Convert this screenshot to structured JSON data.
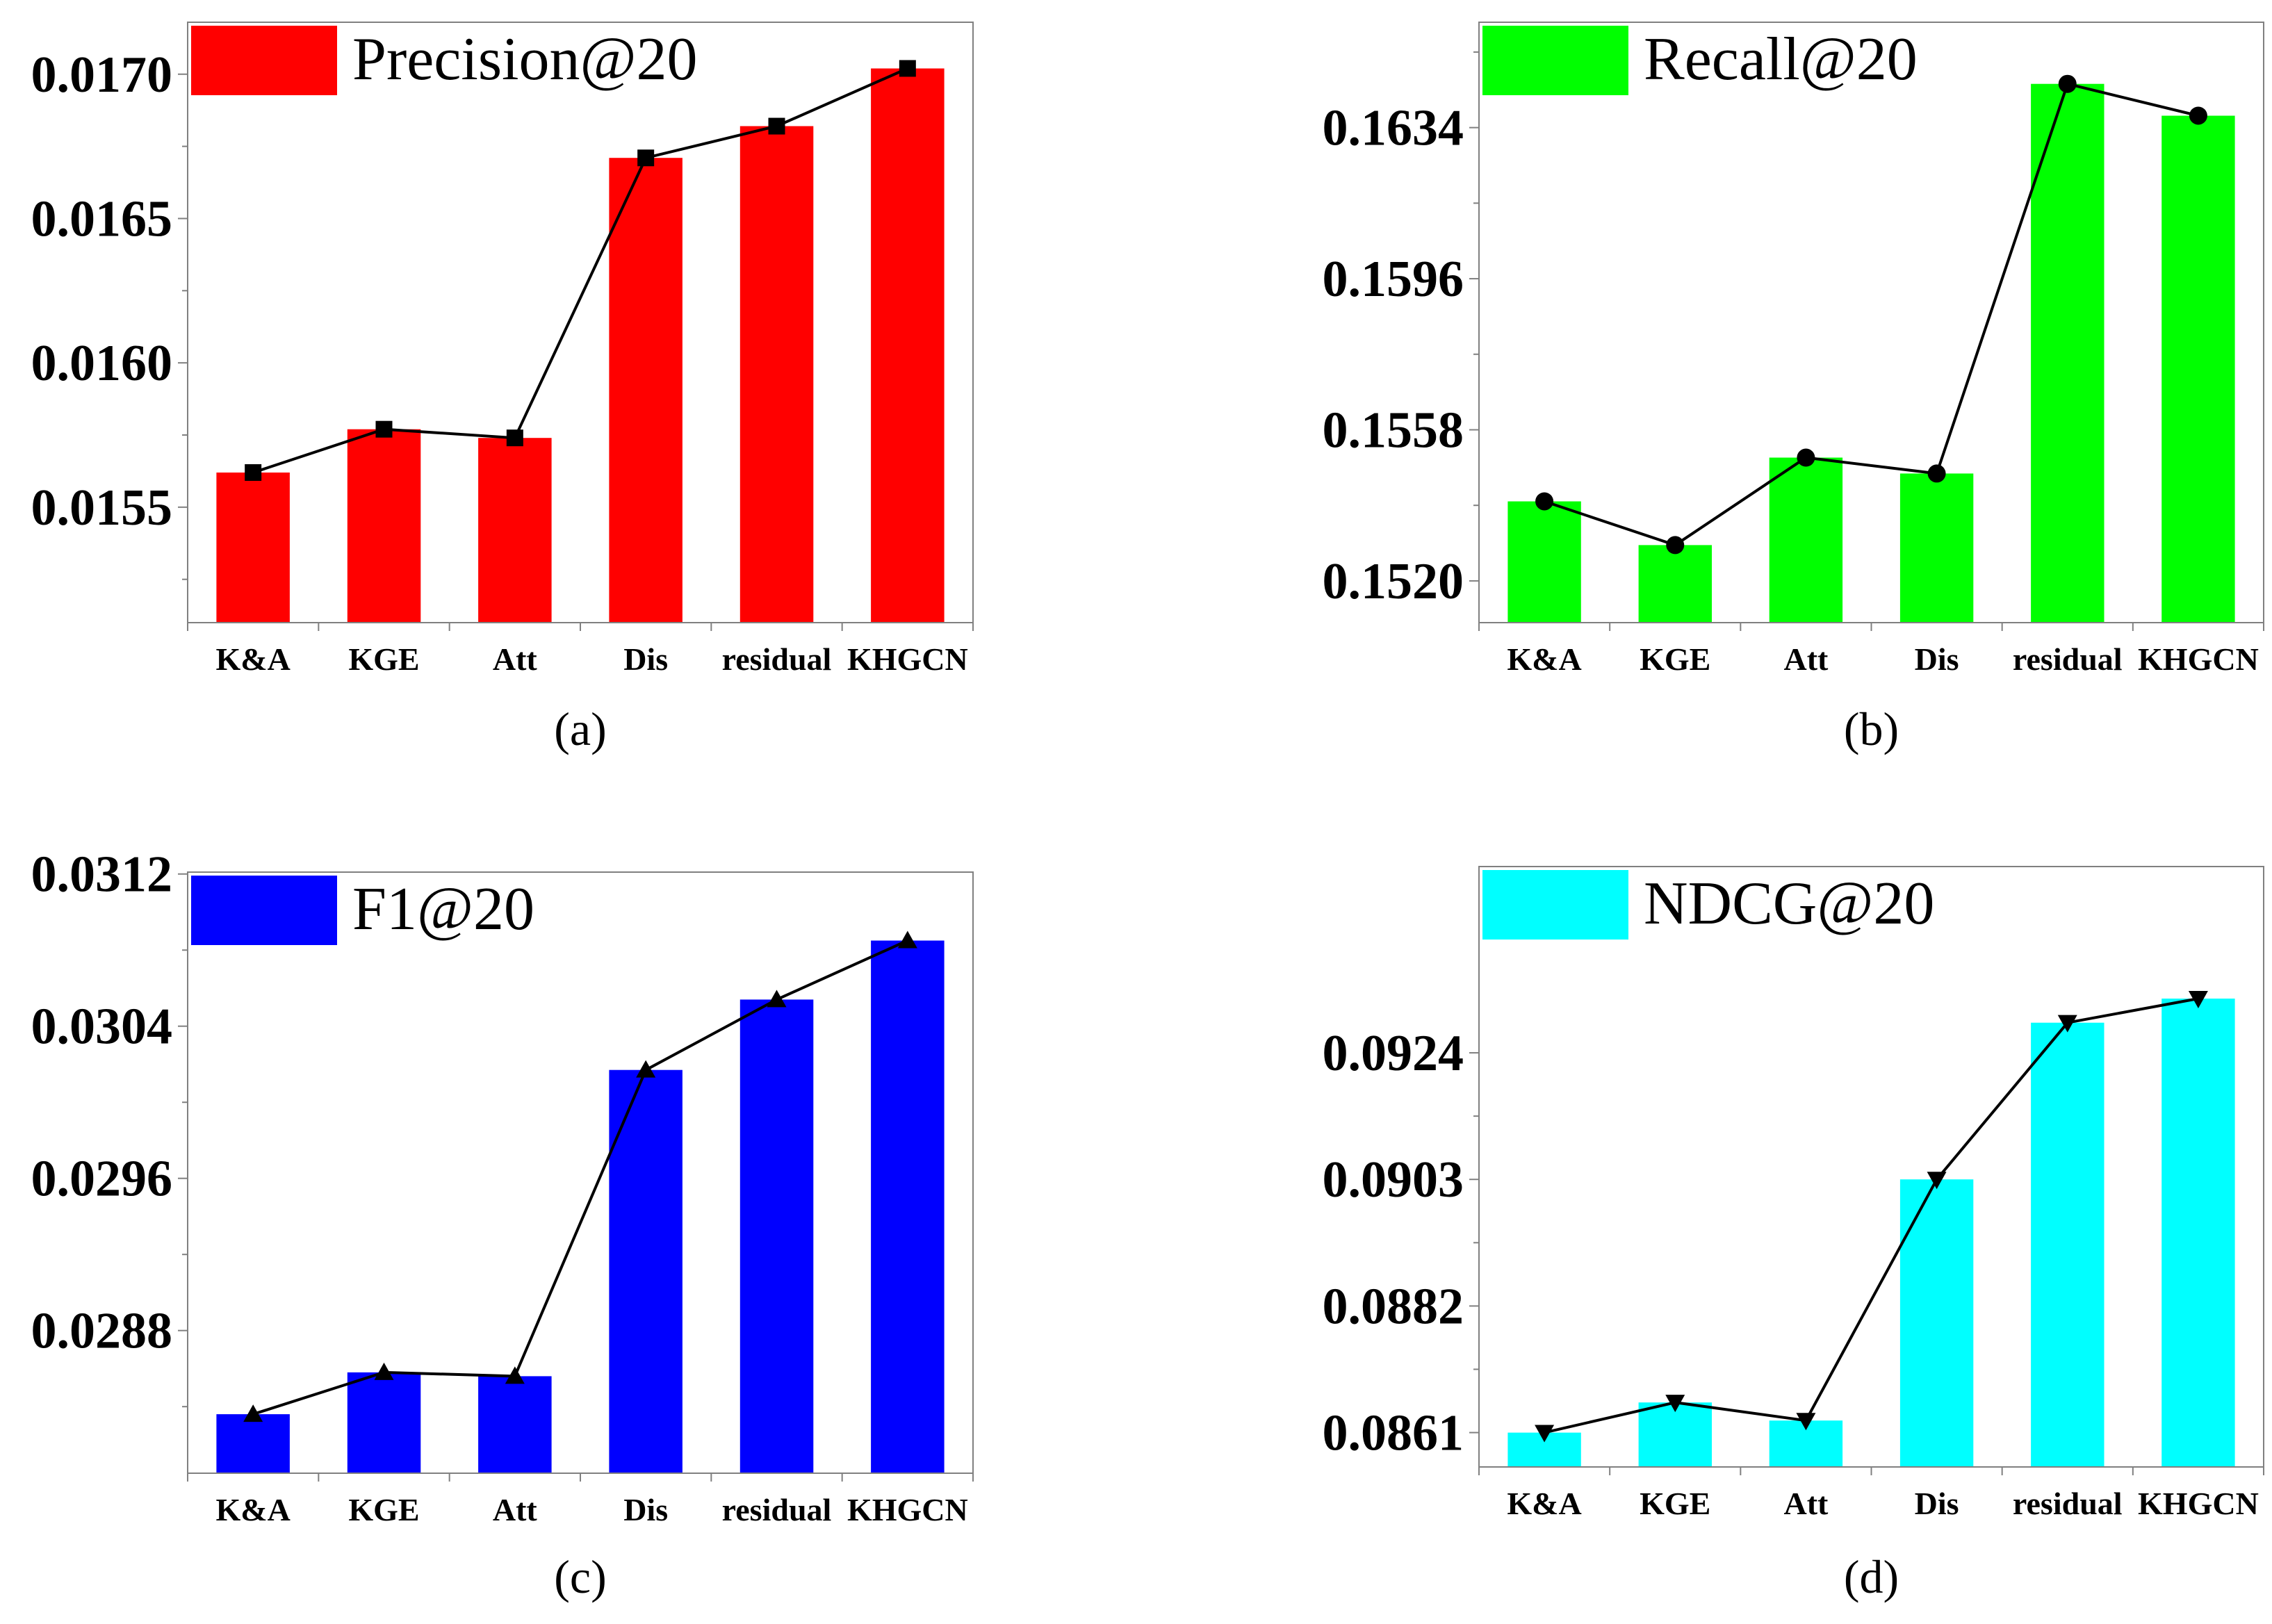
{
  "chart_data": [
    {
      "type": "bar",
      "panel": "(a)",
      "legend": "Precision@20",
      "color": "#ff0000",
      "marker": "square",
      "categories": [
        "K&A",
        "KGE",
        "Att",
        "Dis",
        "residual",
        "KHGCN"
      ],
      "values": [
        0.01562,
        0.01577,
        0.01574,
        0.01671,
        0.01682,
        0.01702
      ],
      "ylim": [
        0.0151,
        0.01718
      ],
      "yticks": [
        0.0155,
        0.016,
        0.0165,
        0.017
      ],
      "ytick_labels": [
        "0.0155",
        "0.0160",
        "0.0165",
        "0.0170"
      ],
      "yminor": [
        0.01525,
        0.01575,
        0.01625,
        0.01675
      ],
      "legend_position": "top-left"
    },
    {
      "type": "bar",
      "panel": "(b)",
      "legend": "Recall@20",
      "color": "#00ff00",
      "marker": "circle",
      "categories": [
        "K&A",
        "KGE",
        "Att",
        "Dis",
        "residual",
        "KHGCN"
      ],
      "values": [
        0.154,
        0.1529,
        0.1551,
        0.1547,
        0.1645,
        0.1637
      ],
      "ylim": [
        0.15095,
        0.16605
      ],
      "yticks": [
        0.152,
        0.1558,
        0.1596,
        0.1634
      ],
      "ytick_labels": [
        "0.1520",
        "0.1558",
        "0.1596",
        "0.1634"
      ],
      "yminor": [
        0.1539,
        0.1577,
        0.1615,
        0.1653
      ],
      "legend_position": "top-left"
    },
    {
      "type": "bar",
      "panel": "(c)",
      "legend": "F1@20",
      "color": "#0000ff",
      "marker": "triangle-up",
      "categories": [
        "K&A",
        "KGE",
        "Att",
        "Dis",
        "residual",
        "KHGCN"
      ],
      "values": [
        0.02836,
        0.02858,
        0.02856,
        0.03017,
        0.03054,
        0.03085
      ],
      "ylim": [
        0.02805,
        0.03121
      ],
      "yticks": [
        0.0288,
        0.0296,
        0.0304,
        0.0312
      ],
      "ytick_labels": [
        "0.0288",
        "0.0296",
        "0.0304",
        "0.0312"
      ],
      "yminor": [
        0.0284,
        0.0292,
        0.03,
        0.0308
      ],
      "legend_position": "top-left"
    },
    {
      "type": "bar",
      "panel": "(d)",
      "legend": "NDCG@20",
      "color": "#00ffff",
      "marker": "triangle-down",
      "categories": [
        "K&A",
        "KGE",
        "Att",
        "Dis",
        "residual",
        "KHGCN"
      ],
      "values": [
        0.0861,
        0.0866,
        0.0863,
        0.0903,
        0.0929,
        0.0933
      ],
      "ylim": [
        0.08553,
        0.09549
      ],
      "yticks": [
        0.0861,
        0.0882,
        0.0903,
        0.0924
      ],
      "ytick_labels": [
        "0.0861",
        "0.0882",
        "0.0903",
        "0.0924"
      ],
      "yminor": [
        0.08715,
        0.08925,
        0.09135
      ],
      "legend_position": "top-left"
    }
  ]
}
